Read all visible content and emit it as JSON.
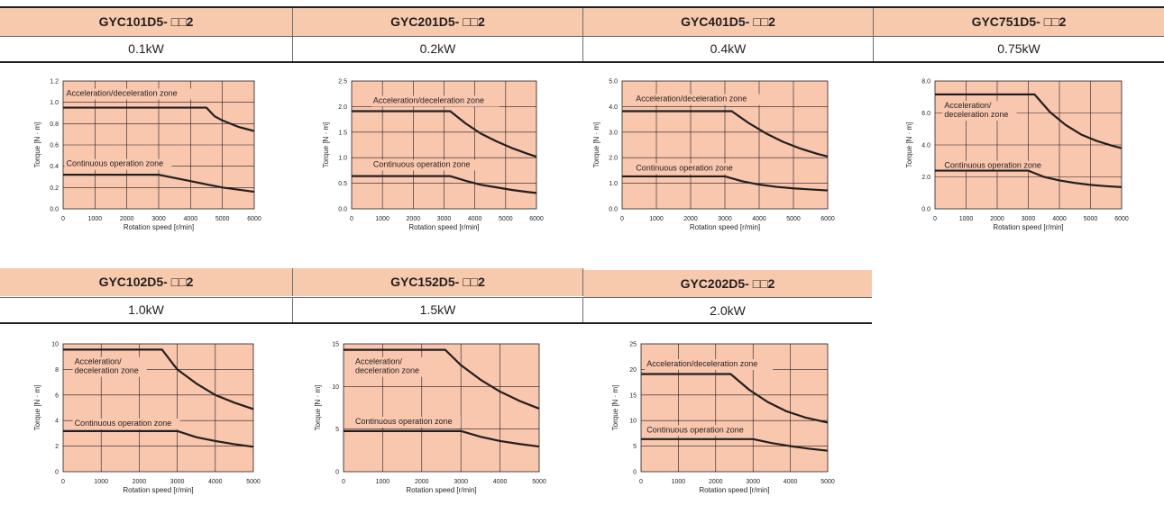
{
  "top_caption": "",
  "colors": {
    "header_bg": "#f7c9ad",
    "plot_bg": "#f9c6ae",
    "curve": "#231f20",
    "grid": "#231f20"
  },
  "table_rows": [
    {
      "models": [
        "GYC101D5- □□2",
        "GYC201D5- □□2",
        "GYC401D5- □□2",
        "GYC751D5- □□2"
      ],
      "powers": [
        "0.1kW",
        "0.2kW",
        "0.4kW",
        "0.75kW"
      ]
    },
    {
      "models": [
        "GYC102D5- □□2",
        "GYC152D5- □□2",
        "GYC202D5- □□2"
      ],
      "powers": [
        "1.0kW",
        "1.5kW",
        "2.0kW"
      ]
    }
  ],
  "chart_data": [
    {
      "type": "line",
      "model": "GYC101D5- □□2",
      "xlabel": "Rotation speed [r/min]",
      "ylabel": "Torque [N · m]",
      "xlim": [
        0,
        6000
      ],
      "ylim": [
        0,
        1.2
      ],
      "grid": true,
      "x_ticks": [
        "0",
        "1000",
        "2000",
        "3000",
        "4000",
        "5000",
        "6000"
      ],
      "y_ticks": [
        "0.0",
        "0.2",
        "0.4",
        "0.6",
        "0.8",
        "1.0",
        "1.2"
      ],
      "series": [
        {
          "name": "Acceleration/deceleration zone",
          "label_lines": [
            "Acceleration/deceleration zone"
          ],
          "label_anchor": [
            100,
            1.06
          ],
          "x": [
            0,
            4500,
            4750,
            5000,
            5250,
            5500,
            5750,
            6000
          ],
          "y": [
            0.95,
            0.95,
            0.87,
            0.83,
            0.8,
            0.77,
            0.75,
            0.73
          ]
        },
        {
          "name": "Continuous operation zone",
          "label_lines": [
            "Continuous operation zone"
          ],
          "label_anchor": [
            100,
            0.4
          ],
          "x": [
            0,
            3000,
            3500,
            4000,
            4500,
            5000,
            5500,
            6000
          ],
          "y": [
            0.32,
            0.32,
            0.29,
            0.26,
            0.23,
            0.2,
            0.18,
            0.16
          ]
        }
      ]
    },
    {
      "type": "line",
      "model": "GYC201D5- □□2",
      "xlabel": "Rotation speed [r/min]",
      "ylabel": "Torque [N · m]",
      "xlim": [
        0,
        6000
      ],
      "ylim": [
        0,
        2.5
      ],
      "grid": true,
      "x_ticks": [
        "0",
        "1000",
        "2000",
        "3000",
        "4000",
        "5000",
        "6000"
      ],
      "y_ticks": [
        "0.0",
        "0.5",
        "1.0",
        "1.5",
        "2.0",
        "2.5"
      ],
      "series": [
        {
          "name": "Acceleration/deceleration zone",
          "label_lines": [
            "Acceleration/deceleration zone"
          ],
          "label_anchor": [
            700,
            2.07
          ],
          "x": [
            0,
            3200,
            3700,
            4200,
            4700,
            5200,
            5700,
            6000
          ],
          "y": [
            1.91,
            1.91,
            1.67,
            1.47,
            1.32,
            1.19,
            1.08,
            1.02
          ]
        },
        {
          "name": "Continuous operation zone",
          "label_lines": [
            "Continuous operation zone"
          ],
          "label_anchor": [
            700,
            0.82
          ],
          "x": [
            0,
            3200,
            3700,
            4200,
            4700,
            5200,
            5700,
            6000
          ],
          "y": [
            0.64,
            0.64,
            0.55,
            0.47,
            0.42,
            0.37,
            0.33,
            0.31
          ]
        }
      ]
    },
    {
      "type": "line",
      "model": "GYC401D5- □□2",
      "xlabel": "Rotation speed [r/min]",
      "ylabel": "Torque [N · m]",
      "xlim": [
        0,
        6000
      ],
      "ylim": [
        0,
        5.0
      ],
      "grid": true,
      "x_ticks": [
        "0",
        "1000",
        "2000",
        "3000",
        "4000",
        "5000",
        "6000"
      ],
      "y_ticks": [
        "0.0",
        "1.0",
        "2.0",
        "3.0",
        "4.0",
        "5.0"
      ],
      "series": [
        {
          "name": "Acceleration/deceleration zone",
          "label_lines": [
            "Acceleration/deceleration zone"
          ],
          "label_anchor": [
            400,
            4.2
          ],
          "x": [
            0,
            3200,
            3700,
            4200,
            4700,
            5200,
            5700,
            6000
          ],
          "y": [
            3.82,
            3.82,
            3.35,
            2.95,
            2.62,
            2.36,
            2.15,
            2.05
          ]
        },
        {
          "name": "Continuous operation zone",
          "label_lines": [
            "Continuous operation zone"
          ],
          "label_anchor": [
            400,
            1.5
          ],
          "x": [
            0,
            3000,
            3500,
            4000,
            4500,
            5000,
            5500,
            6000
          ],
          "y": [
            1.27,
            1.27,
            1.08,
            0.95,
            0.86,
            0.8,
            0.76,
            0.72
          ]
        }
      ]
    },
    {
      "type": "line",
      "model": "GYC751D5- □□2",
      "xlabel": "Rotation speed [r/min]",
      "ylabel": "Torque [N · m]",
      "xlim": [
        0,
        6000
      ],
      "ylim": [
        0,
        8.0
      ],
      "grid": true,
      "x_ticks": [
        "0",
        "1000",
        "2000",
        "3000",
        "4000",
        "5000",
        "6000"
      ],
      "y_ticks": [
        "0.0",
        "2.0",
        "4.0",
        "6.0",
        "8.0"
      ],
      "series": [
        {
          "name": "Acceleration/deceleration",
          "label_lines": [
            "Acceleration/",
            "deceleration zone"
          ],
          "label_anchor": [
            300,
            6.3
          ],
          "x": [
            0,
            3200,
            3700,
            4200,
            4700,
            5200,
            5700,
            6000
          ],
          "y": [
            7.16,
            7.16,
            6.05,
            5.25,
            4.65,
            4.25,
            3.95,
            3.8
          ]
        },
        {
          "name": "Continuous operation zone",
          "label_lines": [
            "Continuous operation zone"
          ],
          "label_anchor": [
            300,
            2.55
          ],
          "x": [
            0,
            3000,
            3500,
            4000,
            4500,
            5000,
            5500,
            6000
          ],
          "y": [
            2.39,
            2.39,
            2.0,
            1.78,
            1.62,
            1.5,
            1.42,
            1.36
          ]
        }
      ]
    },
    {
      "type": "line",
      "model": "GYC102D5- □□2",
      "xlabel": "Rotation speed [r/min]",
      "ylabel": "Torque [N · m]",
      "xlim": [
        0,
        5000
      ],
      "ylim": [
        0,
        10
      ],
      "grid": true,
      "x_ticks": [
        "0",
        "1000",
        "2000",
        "3000",
        "4000",
        "5000"
      ],
      "y_ticks": [
        "0",
        "2",
        "4",
        "6",
        "8",
        "10"
      ],
      "series": [
        {
          "name": "Acceleration/deceleration zone",
          "label_lines": [
            "Acceleration/",
            "deceleration zone"
          ],
          "label_anchor": [
            300,
            8.4
          ],
          "x": [
            0,
            2600,
            3000,
            3500,
            4000,
            4500,
            5000
          ],
          "y": [
            9.55,
            9.55,
            8.0,
            6.9,
            6.0,
            5.4,
            4.9
          ]
        },
        {
          "name": "Continuous operation zone",
          "label_lines": [
            "Continuous operation zone"
          ],
          "label_anchor": [
            300,
            3.6
          ],
          "x": [
            0,
            3000,
            3500,
            4000,
            4500,
            5000
          ],
          "y": [
            3.18,
            3.18,
            2.7,
            2.4,
            2.15,
            1.95
          ]
        }
      ]
    },
    {
      "type": "line",
      "model": "GYC152D5- □□2",
      "xlabel": "Rotation speed [r/min]",
      "ylabel": "Torque [N · m]",
      "xlim": [
        0,
        5000
      ],
      "ylim": [
        0,
        15
      ],
      "grid": true,
      "x_ticks": [
        "0",
        "1000",
        "2000",
        "3000",
        "4000",
        "5000"
      ],
      "y_ticks": [
        "0",
        "5",
        "10",
        "15"
      ],
      "series": [
        {
          "name": "Acceleration/deceleration zone",
          "label_lines": [
            "Acceleration/",
            "deceleration zone"
          ],
          "label_anchor": [
            300,
            12.6
          ],
          "x": [
            0,
            2600,
            3000,
            3500,
            4000,
            4500,
            5000
          ],
          "y": [
            14.3,
            14.3,
            12.5,
            10.8,
            9.4,
            8.3,
            7.4
          ]
        },
        {
          "name": "Continuous operation zone",
          "label_lines": [
            "Continuous operation zone"
          ],
          "label_anchor": [
            300,
            5.6
          ],
          "x": [
            0,
            3000,
            3500,
            4000,
            4500,
            5000
          ],
          "y": [
            4.77,
            4.77,
            4.1,
            3.6,
            3.25,
            2.95
          ]
        }
      ]
    },
    {
      "type": "line",
      "model": "GYC202D5- □□2",
      "xlabel": "Rotation speed [r/min]",
      "ylabel": "Torque [N · m]",
      "xlim": [
        0,
        5000
      ],
      "ylim": [
        0,
        25
      ],
      "grid": true,
      "x_ticks": [
        "0",
        "1000",
        "2000",
        "3000",
        "4000",
        "5000"
      ],
      "y_ticks": [
        "0",
        "5",
        "10",
        "15",
        "20",
        "25"
      ],
      "series": [
        {
          "name": "Acceleration/deceleration zone",
          "label_lines": [
            "Acceleration/deceleration zone"
          ],
          "label_anchor": [
            150,
            20.6
          ],
          "x": [
            0,
            2400,
            2900,
            3400,
            3900,
            4400,
            5000
          ],
          "y": [
            19.1,
            19.1,
            16.0,
            13.6,
            11.8,
            10.6,
            9.6
          ]
        },
        {
          "name": "Continuous operation zone",
          "label_lines": [
            "Continuous operation zone"
          ],
          "label_anchor": [
            150,
            7.7
          ],
          "x": [
            0,
            3000,
            3500,
            4000,
            4500,
            5000
          ],
          "y": [
            6.37,
            6.37,
            5.6,
            5.0,
            4.5,
            4.1
          ]
        }
      ]
    }
  ]
}
